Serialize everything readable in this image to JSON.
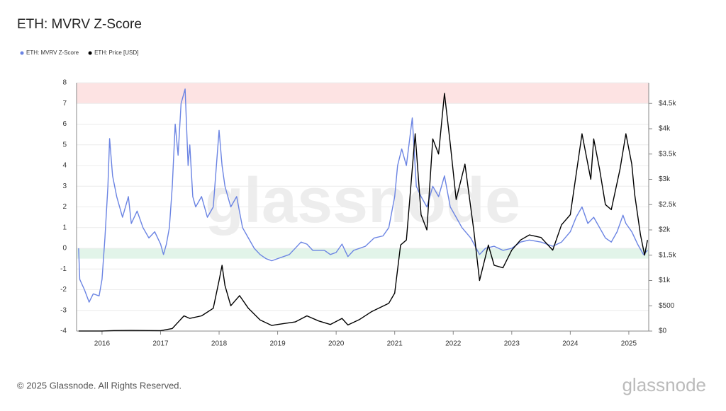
{
  "chart_data": {
    "type": "line",
    "title": "ETH: MVRV Z-Score",
    "footer": "© 2025 Glassnode. All Rights Reserved.",
    "watermark": "glassnode",
    "logo": "glassnode",
    "legend": "top-left",
    "xlim": [
      2015.565,
      2025.34
    ],
    "xticks": [
      2016,
      2017,
      2018,
      2019,
      2020,
      2021,
      2022,
      2023,
      2024,
      2025
    ],
    "ylim": [
      -4,
      8
    ],
    "yticks": [
      -4,
      -3,
      -2,
      -1,
      0,
      1,
      2,
      3,
      4,
      5,
      6,
      7,
      8
    ],
    "y2lim": [
      0,
      4909
    ],
    "y2ticks": [
      {
        "value": 0,
        "label": "$0"
      },
      {
        "value": 500,
        "label": "$500"
      },
      {
        "value": 1000,
        "label": "$1k"
      },
      {
        "value": 1500,
        "label": "$1.5k"
      },
      {
        "value": 2000,
        "label": "$2k"
      },
      {
        "value": 2500,
        "label": "$2.5k"
      },
      {
        "value": 3000,
        "label": "$3k"
      },
      {
        "value": 3500,
        "label": "$3.5k"
      },
      {
        "value": 4000,
        "label": "$4k"
      },
      {
        "value": 4500,
        "label": "$4.5k"
      }
    ],
    "grid": true,
    "zones": [
      {
        "from": 7,
        "to": 8,
        "color": "#fde3e3"
      },
      {
        "from": -0.5,
        "to": 0,
        "color": "#e2f4e9"
      }
    ],
    "series": [
      {
        "name": "ETH: MVRV Z-Score",
        "color": "#6b84e3",
        "axis": "y",
        "x": [
          2015.6,
          2015.62,
          2015.7,
          2015.78,
          2015.85,
          2015.95,
          2016.0,
          2016.05,
          2016.1,
          2016.13,
          2016.18,
          2016.25,
          2016.35,
          2016.45,
          2016.5,
          2016.6,
          2016.7,
          2016.8,
          2016.9,
          2017.0,
          2017.05,
          2017.1,
          2017.15,
          2017.2,
          2017.25,
          2017.3,
          2017.35,
          2017.42,
          2017.47,
          2017.5,
          2017.55,
          2017.6,
          2017.7,
          2017.8,
          2017.9,
          2018.0,
          2018.05,
          2018.1,
          2018.2,
          2018.3,
          2018.4,
          2018.5,
          2018.6,
          2018.7,
          2018.8,
          2018.9,
          2019.0,
          2019.2,
          2019.4,
          2019.5,
          2019.6,
          2019.8,
          2019.9,
          2020.0,
          2020.1,
          2020.2,
          2020.3,
          2020.5,
          2020.65,
          2020.8,
          2020.9,
          2021.0,
          2021.05,
          2021.12,
          2021.2,
          2021.3,
          2021.37,
          2021.45,
          2021.55,
          2021.65,
          2021.75,
          2021.85,
          2021.95,
          2022.05,
          2022.15,
          2022.3,
          2022.45,
          2022.55,
          2022.7,
          2022.85,
          2023.0,
          2023.15,
          2023.3,
          2023.5,
          2023.7,
          2023.85,
          2024.0,
          2024.1,
          2024.2,
          2024.3,
          2024.4,
          2024.5,
          2024.6,
          2024.7,
          2024.8,
          2024.9,
          2024.95,
          2025.05,
          2025.15,
          2025.25,
          2025.32
        ],
        "values": [
          0,
          -1.5,
          -2,
          -2.6,
          -2.2,
          -2.3,
          -1.5,
          0.5,
          3,
          5.3,
          3.5,
          2.5,
          1.5,
          2.5,
          1.2,
          1.8,
          1.0,
          0.5,
          0.8,
          0.2,
          -0.3,
          0.2,
          1,
          3,
          6,
          4.5,
          7,
          7.7,
          4,
          5,
          2.5,
          2,
          2.5,
          1.5,
          2,
          5.7,
          4,
          3,
          2,
          2.5,
          1,
          0.5,
          0,
          -0.3,
          -0.5,
          -0.6,
          -0.5,
          -0.3,
          0.3,
          0.2,
          -0.1,
          -0.1,
          -0.3,
          -0.2,
          0.2,
          -0.4,
          -0.1,
          0.1,
          0.5,
          0.6,
          1.0,
          2.5,
          4,
          4.8,
          4,
          6.3,
          3,
          2.5,
          2,
          3,
          2.5,
          3.5,
          2,
          1.5,
          1,
          0.5,
          -0.3,
          0,
          0.1,
          -0.1,
          0,
          0.3,
          0.4,
          0.3,
          0.1,
          0.3,
          0.8,
          1.5,
          2,
          1.2,
          1.5,
          1,
          0.5,
          0.3,
          0.8,
          1.6,
          1.2,
          0.8,
          0.2,
          -0.3,
          -0.1
        ]
      },
      {
        "name": "ETH: Price [USD]",
        "color": "#000000",
        "axis": "y2",
        "x": [
          2015.6,
          2016.0,
          2016.2,
          2016.5,
          2016.8,
          2017.0,
          2017.2,
          2017.4,
          2017.5,
          2017.7,
          2017.9,
          2018.0,
          2018.05,
          2018.1,
          2018.2,
          2018.35,
          2018.5,
          2018.7,
          2018.9,
          2019.0,
          2019.3,
          2019.5,
          2019.7,
          2019.9,
          2020.1,
          2020.2,
          2020.4,
          2020.6,
          2020.9,
          2021.0,
          2021.1,
          2021.2,
          2021.35,
          2021.45,
          2021.55,
          2021.65,
          2021.75,
          2021.85,
          2021.95,
          2022.05,
          2022.2,
          2022.35,
          2022.45,
          2022.6,
          2022.7,
          2022.85,
          2023.0,
          2023.15,
          2023.3,
          2023.5,
          2023.7,
          2023.85,
          2024.0,
          2024.15,
          2024.2,
          2024.35,
          2024.4,
          2024.5,
          2024.6,
          2024.7,
          2024.85,
          2024.95,
          2025.05,
          2025.1,
          2025.2,
          2025.27,
          2025.32
        ],
        "values": [
          1,
          1,
          10,
          12,
          10,
          8,
          50,
          300,
          250,
          300,
          450,
          1000,
          1300,
          900,
          500,
          700,
          450,
          220,
          110,
          130,
          180,
          300,
          200,
          130,
          250,
          120,
          230,
          380,
          550,
          750,
          1700,
          1800,
          3900,
          2300,
          2000,
          3800,
          3500,
          4700,
          3700,
          2600,
          3300,
          2000,
          1000,
          1700,
          1300,
          1250,
          1600,
          1800,
          1900,
          1850,
          1600,
          2100,
          2300,
          3500,
          3900,
          3000,
          3800,
          3200,
          2500,
          2400,
          3200,
          3900,
          3300,
          2700,
          1900,
          1500,
          1800
        ]
      }
    ]
  }
}
